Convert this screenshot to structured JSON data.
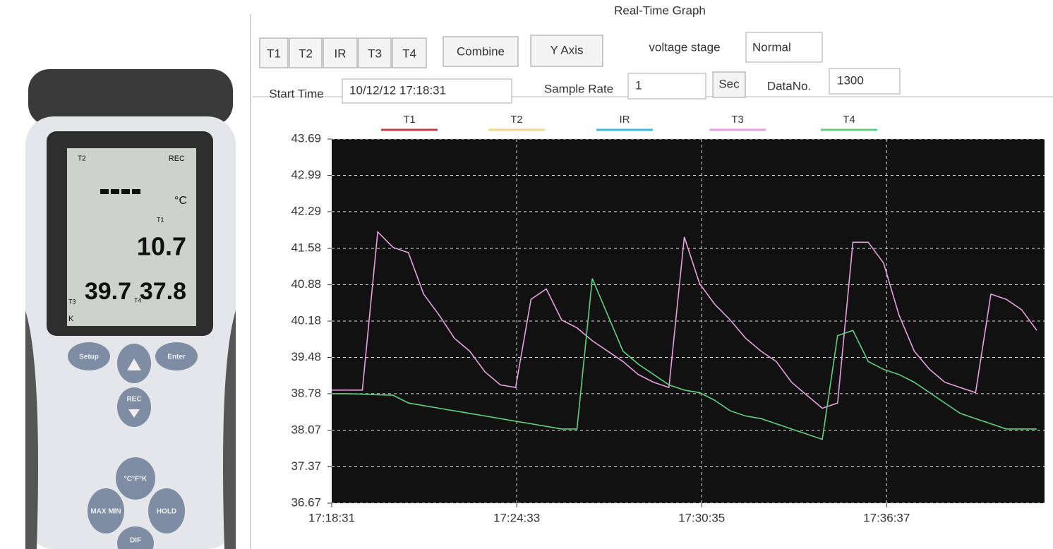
{
  "device": {
    "screen": {
      "top_left": "T2",
      "top_right": "REC",
      "unit": "°C",
      "row1_label": "T1",
      "row1_value": "10.7",
      "row2_left_value": "39.7",
      "row2_mid_label": "T4",
      "row2_right_value": "37.8",
      "bottom_label_1": "T3",
      "bottom_label_2": "K"
    },
    "buttons": [
      "Setup",
      "Enter",
      "REC",
      "°C°F°K",
      "MAX MIN",
      "HOLD",
      "DIF"
    ]
  },
  "window": {
    "title": "Real-Time Graph",
    "channel_buttons": [
      "T1",
      "T2",
      "IR",
      "T3",
      "T4"
    ],
    "combine_button": "Combine",
    "y_axis_button": "Y Axis",
    "voltage_stage_label": "voltage stage",
    "voltage_stage_value": "Normal",
    "start_time_label": "Start Time",
    "start_time_value": "10/12/12 17:18:31",
    "sample_rate_label": "Sample Rate",
    "sample_rate_value": "1",
    "sample_rate_unit": "Sec",
    "data_no_label": "DataNo.",
    "data_no_value": "1300"
  },
  "chart_data": {
    "type": "line",
    "grid": true,
    "background": "#111111",
    "x": [
      "17:18:31",
      "17:19:01",
      "17:19:31",
      "17:20:01",
      "17:20:31",
      "17:21:01",
      "17:21:31",
      "17:22:01",
      "17:22:31",
      "17:23:01",
      "17:23:31",
      "17:24:01",
      "17:24:31",
      "17:25:01",
      "17:25:31",
      "17:26:01",
      "17:26:31",
      "17:27:01",
      "17:27:31",
      "17:28:01",
      "17:28:31",
      "17:29:01",
      "17:29:31",
      "17:30:01",
      "17:30:31",
      "17:31:01",
      "17:31:31",
      "17:32:01",
      "17:32:31",
      "17:33:01",
      "17:33:31",
      "17:34:01",
      "17:34:31",
      "17:35:01",
      "17:35:31",
      "17:36:01",
      "17:36:31",
      "17:37:01",
      "17:37:31",
      "17:38:01",
      "17:38:31",
      "17:39:01",
      "17:39:31",
      "17:40:01",
      "17:40:31",
      "17:41:01",
      "17:41:31"
    ],
    "xlim": [
      "17:18:31",
      "17:41:46"
    ],
    "xticks": [
      "17:18:31",
      "17:24:33",
      "17:30:35",
      "17:36:37"
    ],
    "ylim": [
      36.67,
      43.69
    ],
    "yticks": [
      36.67,
      37.37,
      38.07,
      38.78,
      39.48,
      40.18,
      40.88,
      41.58,
      42.29,
      42.99,
      43.69
    ],
    "series": [
      {
        "name": "T1",
        "color": "#c0404a",
        "values": [
          null,
          null,
          null,
          null,
          null,
          null,
          null,
          null,
          null,
          null,
          null,
          null,
          null,
          null,
          null,
          null,
          null,
          null,
          null,
          null,
          null,
          null,
          null,
          null,
          null,
          null,
          null,
          null,
          null,
          null,
          null,
          null,
          null,
          null,
          null,
          null,
          null,
          null,
          null,
          null,
          null,
          null,
          null,
          null,
          null,
          null,
          null
        ]
      },
      {
        "name": "T2",
        "color": "#f0d890",
        "values": [
          null,
          null,
          null,
          null,
          null,
          null,
          null,
          null,
          null,
          null,
          null,
          null,
          null,
          null,
          null,
          null,
          null,
          null,
          null,
          null,
          null,
          null,
          null,
          null,
          null,
          null,
          null,
          null,
          null,
          null,
          null,
          null,
          null,
          null,
          null,
          null,
          null,
          null,
          null,
          null,
          null,
          null,
          null,
          null,
          null,
          null,
          null
        ]
      },
      {
        "name": "IR",
        "color": "#40b8e0",
        "values": [
          null,
          null,
          null,
          null,
          null,
          null,
          null,
          null,
          null,
          null,
          null,
          null,
          null,
          null,
          null,
          null,
          null,
          null,
          null,
          null,
          null,
          null,
          null,
          null,
          null,
          null,
          null,
          null,
          null,
          null,
          null,
          null,
          null,
          null,
          null,
          null,
          null,
          null,
          null,
          null,
          null,
          null,
          null,
          null,
          null,
          null,
          null
        ]
      },
      {
        "name": "T3",
        "color": "#e8a0e0",
        "values": [
          38.85,
          38.85,
          38.85,
          41.9,
          41.6,
          41.5,
          40.7,
          40.3,
          39.85,
          39.6,
          39.2,
          38.95,
          38.9,
          40.6,
          40.8,
          40.2,
          40.05,
          39.8,
          39.6,
          39.4,
          39.15,
          39.0,
          38.9,
          41.8,
          40.9,
          40.5,
          40.2,
          39.85,
          39.6,
          39.4,
          39.0,
          38.75,
          38.5,
          38.6,
          41.7,
          41.7,
          41.3,
          40.3,
          39.6,
          39.25,
          39.0,
          38.9,
          38.8,
          40.7,
          40.6,
          40.4,
          40.0
        ]
      },
      {
        "name": "T4",
        "color": "#60d080",
        "values": [
          38.78,
          38.78,
          38.77,
          38.76,
          38.75,
          38.6,
          38.55,
          38.5,
          38.45,
          38.4,
          38.35,
          38.3,
          38.25,
          38.2,
          38.15,
          38.1,
          38.1,
          41.0,
          40.3,
          39.6,
          39.35,
          39.15,
          38.95,
          38.85,
          38.8,
          38.65,
          38.45,
          38.35,
          38.3,
          38.2,
          38.1,
          38.0,
          37.9,
          39.9,
          40.0,
          39.4,
          39.25,
          39.15,
          39.0,
          38.8,
          38.6,
          38.4,
          38.3,
          38.2,
          38.1,
          38.1,
          38.1
        ]
      }
    ]
  }
}
